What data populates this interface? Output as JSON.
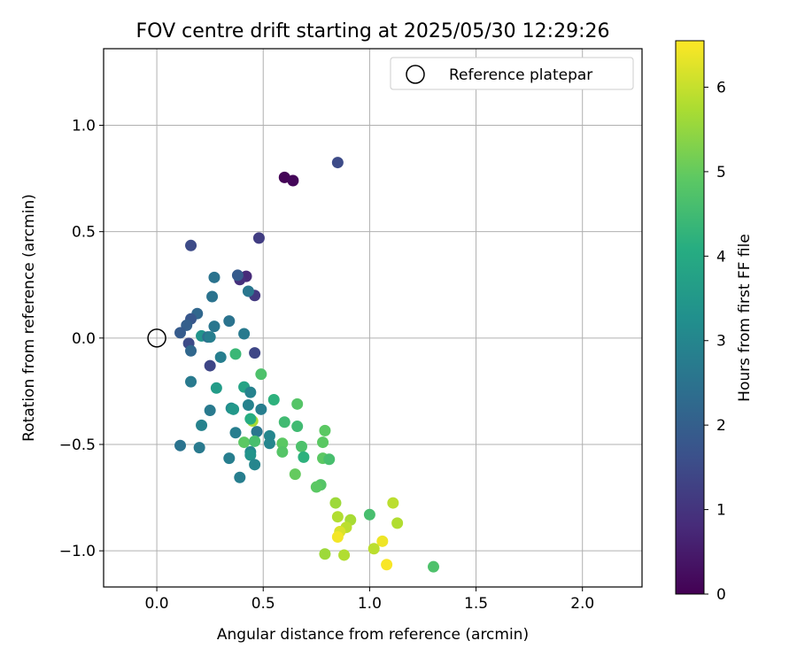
{
  "chart_data": {
    "type": "scatter",
    "title": "FOV centre drift starting at 2025/05/30 12:29:26",
    "xlabel": "Angular distance from reference (arcmin)",
    "ylabel": "Rotation from reference (arcmin)",
    "xlim": [
      -0.25,
      2.28
    ],
    "ylim": [
      -1.17,
      1.36
    ],
    "xticks": [
      "0.0",
      "0.5",
      "1.0",
      "1.5",
      "2.0"
    ],
    "xtick_values": [
      0,
      0.5,
      1.0,
      1.5,
      2.0
    ],
    "yticks": [
      "1.0",
      "0.5",
      "0.0",
      "−0.5",
      "−1.0"
    ],
    "ytick_values": [
      1.0,
      0.5,
      0.0,
      -0.5,
      -1.0
    ],
    "grid": true,
    "legend": {
      "label": "Reference platepar",
      "placement": "top-right"
    },
    "reference_point": {
      "x": 0.0,
      "y": 0.0
    },
    "colorbar": {
      "label": "Hours from first FF file",
      "colormap": "viridis",
      "range": [
        0,
        6.55
      ],
      "ticks": [
        "0",
        "1",
        "2",
        "3",
        "4",
        "5",
        "6"
      ],
      "tick_values": [
        0,
        1,
        2,
        3,
        4,
        5,
        6
      ]
    },
    "points": [
      {
        "x": 0.6,
        "y": 0.755,
        "c": 0.05
      },
      {
        "x": 0.64,
        "y": 0.74,
        "c": 0.1
      },
      {
        "x": 0.85,
        "y": 0.825,
        "c": 1.5
      },
      {
        "x": 0.48,
        "y": 0.47,
        "c": 1.2
      },
      {
        "x": 0.16,
        "y": 0.435,
        "c": 1.5
      },
      {
        "x": 0.42,
        "y": 0.29,
        "c": 0.8
      },
      {
        "x": 0.39,
        "y": 0.275,
        "c": 0.9
      },
      {
        "x": 0.38,
        "y": 0.295,
        "c": 1.9
      },
      {
        "x": 0.46,
        "y": 0.2,
        "c": 1.1
      },
      {
        "x": 0.43,
        "y": 0.22,
        "c": 2.6
      },
      {
        "x": 0.27,
        "y": 0.285,
        "c": 2.5
      },
      {
        "x": 0.26,
        "y": 0.195,
        "c": 2.5
      },
      {
        "x": 0.19,
        "y": 0.115,
        "c": 2.2
      },
      {
        "x": 0.16,
        "y": 0.09,
        "c": 1.8
      },
      {
        "x": 0.14,
        "y": 0.06,
        "c": 2.0
      },
      {
        "x": 0.11,
        "y": 0.025,
        "c": 1.9
      },
      {
        "x": 0.15,
        "y": -0.025,
        "c": 1.5
      },
      {
        "x": 0.16,
        "y": -0.06,
        "c": 2.2
      },
      {
        "x": 0.27,
        "y": 0.055,
        "c": 2.6
      },
      {
        "x": 0.34,
        "y": 0.08,
        "c": 2.5
      },
      {
        "x": 0.21,
        "y": 0.01,
        "c": 3.4
      },
      {
        "x": 0.24,
        "y": 0.005,
        "c": 2.4
      },
      {
        "x": 0.25,
        "y": 0.005,
        "c": 2.8
      },
      {
        "x": 0.41,
        "y": 0.02,
        "c": 2.7
      },
      {
        "x": 0.46,
        "y": -0.07,
        "c": 1.4
      },
      {
        "x": 0.37,
        "y": -0.075,
        "c": 4.4
      },
      {
        "x": 0.3,
        "y": -0.09,
        "c": 2.8
      },
      {
        "x": 0.25,
        "y": -0.13,
        "c": 1.4
      },
      {
        "x": 0.16,
        "y": -0.205,
        "c": 2.7
      },
      {
        "x": 0.28,
        "y": -0.235,
        "c": 3.6
      },
      {
        "x": 0.41,
        "y": -0.23,
        "c": 3.8
      },
      {
        "x": 0.44,
        "y": -0.255,
        "c": 2.9
      },
      {
        "x": 0.49,
        "y": -0.17,
        "c": 4.7
      },
      {
        "x": 0.55,
        "y": -0.29,
        "c": 4.2
      },
      {
        "x": 0.66,
        "y": -0.31,
        "c": 4.8
      },
      {
        "x": 0.43,
        "y": -0.315,
        "c": 2.9
      },
      {
        "x": 0.49,
        "y": -0.335,
        "c": 2.8
      },
      {
        "x": 0.35,
        "y": -0.33,
        "c": 3.2
      },
      {
        "x": 0.36,
        "y": -0.335,
        "c": 3.5
      },
      {
        "x": 0.25,
        "y": -0.34,
        "c": 2.7
      },
      {
        "x": 0.45,
        "y": -0.39,
        "c": 5.7
      },
      {
        "x": 0.44,
        "y": -0.38,
        "c": 4.1
      },
      {
        "x": 0.6,
        "y": -0.395,
        "c": 4.5
      },
      {
        "x": 0.66,
        "y": -0.415,
        "c": 4.5
      },
      {
        "x": 0.79,
        "y": -0.435,
        "c": 4.9
      },
      {
        "x": 0.21,
        "y": -0.41,
        "c": 2.9
      },
      {
        "x": 0.37,
        "y": -0.445,
        "c": 2.8
      },
      {
        "x": 0.47,
        "y": -0.44,
        "c": 2.6
      },
      {
        "x": 0.53,
        "y": -0.46,
        "c": 3.0
      },
      {
        "x": 0.41,
        "y": -0.49,
        "c": 4.9
      },
      {
        "x": 0.46,
        "y": -0.485,
        "c": 4.6
      },
      {
        "x": 0.53,
        "y": -0.495,
        "c": 3.0
      },
      {
        "x": 0.59,
        "y": -0.495,
        "c": 4.9
      },
      {
        "x": 0.78,
        "y": -0.49,
        "c": 4.9
      },
      {
        "x": 0.11,
        "y": -0.505,
        "c": 2.5
      },
      {
        "x": 0.2,
        "y": -0.515,
        "c": 2.7
      },
      {
        "x": 0.68,
        "y": -0.51,
        "c": 4.7
      },
      {
        "x": 0.44,
        "y": -0.535,
        "c": 3.1
      },
      {
        "x": 0.44,
        "y": -0.55,
        "c": 3.4
      },
      {
        "x": 0.59,
        "y": -0.535,
        "c": 4.8
      },
      {
        "x": 0.34,
        "y": -0.565,
        "c": 2.8
      },
      {
        "x": 0.69,
        "y": -0.56,
        "c": 4.2
      },
      {
        "x": 0.78,
        "y": -0.565,
        "c": 4.9
      },
      {
        "x": 0.81,
        "y": -0.57,
        "c": 4.6
      },
      {
        "x": 0.46,
        "y": -0.595,
        "c": 3.0
      },
      {
        "x": 0.39,
        "y": -0.655,
        "c": 2.8
      },
      {
        "x": 0.65,
        "y": -0.64,
        "c": 5.0
      },
      {
        "x": 0.77,
        "y": -0.69,
        "c": 4.8
      },
      {
        "x": 0.75,
        "y": -0.7,
        "c": 4.9
      },
      {
        "x": 0.84,
        "y": -0.775,
        "c": 5.6
      },
      {
        "x": 1.11,
        "y": -0.775,
        "c": 5.9
      },
      {
        "x": 1.0,
        "y": -0.83,
        "c": 4.6
      },
      {
        "x": 0.85,
        "y": -0.84,
        "c": 5.8
      },
      {
        "x": 0.91,
        "y": -0.855,
        "c": 5.7
      },
      {
        "x": 1.13,
        "y": -0.87,
        "c": 5.8
      },
      {
        "x": 0.89,
        "y": -0.89,
        "c": 5.9
      },
      {
        "x": 0.86,
        "y": -0.91,
        "c": 6.2
      },
      {
        "x": 0.85,
        "y": -0.935,
        "c": 6.45
      },
      {
        "x": 1.06,
        "y": -0.955,
        "c": 6.4
      },
      {
        "x": 1.02,
        "y": -0.99,
        "c": 5.9
      },
      {
        "x": 0.79,
        "y": -1.015,
        "c": 5.6
      },
      {
        "x": 0.88,
        "y": -1.02,
        "c": 5.8
      },
      {
        "x": 1.08,
        "y": -1.065,
        "c": 6.5
      },
      {
        "x": 1.3,
        "y": -1.075,
        "c": 4.7
      }
    ]
  }
}
